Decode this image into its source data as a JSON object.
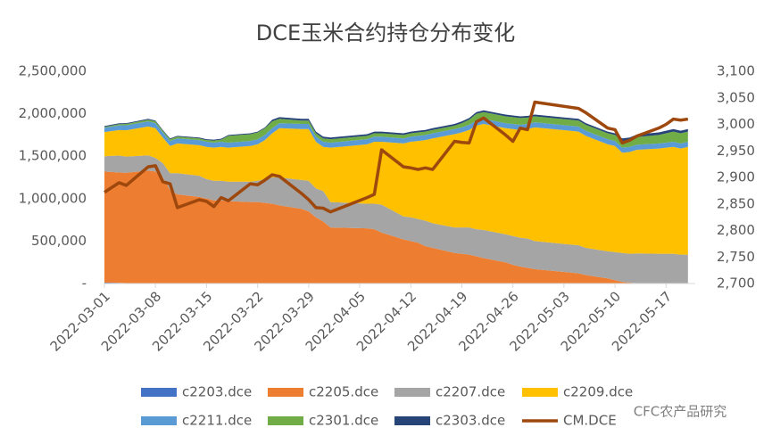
{
  "chart_data": {
    "type": "area",
    "title": "DCE玉米合约持仓分布变化",
    "watermark": "CFC农产品研究",
    "x": [
      "2022-03-01",
      "2022-03-03",
      "2022-03-04",
      "2022-03-07",
      "2022-03-08",
      "2022-03-09",
      "2022-03-10",
      "2022-03-11",
      "2022-03-14",
      "2022-03-15",
      "2022-03-16",
      "2022-03-17",
      "2022-03-18",
      "2022-03-21",
      "2022-03-22",
      "2022-03-23",
      "2022-03-24",
      "2022-03-25",
      "2022-03-28",
      "2022-03-29",
      "2022-03-30",
      "2022-03-31",
      "2022-04-01",
      "2022-04-06",
      "2022-04-07",
      "2022-04-08",
      "2022-04-11",
      "2022-04-12",
      "2022-04-13",
      "2022-04-14",
      "2022-04-15",
      "2022-04-18",
      "2022-04-19",
      "2022-04-20",
      "2022-04-21",
      "2022-04-22",
      "2022-04-25",
      "2022-04-26",
      "2022-04-27",
      "2022-04-28",
      "2022-04-29",
      "2022-05-05",
      "2022-05-06",
      "2022-05-09",
      "2022-05-10",
      "2022-05-11",
      "2022-05-12",
      "2022-05-13",
      "2022-05-16",
      "2022-05-17",
      "2022-05-18",
      "2022-05-19",
      "2022-05-20"
    ],
    "xlim": [
      "2022-03-01",
      "2022-05-21"
    ],
    "xticks": [
      "2022-03-01",
      "2022-03-08",
      "2022-03-15",
      "2022-03-22",
      "2022-03-29",
      "2022-04-05",
      "2022-04-12",
      "2022-04-19",
      "2022-04-26",
      "2022-05-03",
      "2022-05-10",
      "2022-05-17"
    ],
    "ylim": [
      0,
      2500000
    ],
    "yticks": [
      {
        "value": 0,
        "label": "-"
      },
      {
        "value": 500000,
        "label": "500,000"
      },
      {
        "value": 1000000,
        "label": "1,000,000"
      },
      {
        "value": 1500000,
        "label": "1,500,000"
      },
      {
        "value": 2000000,
        "label": "2,000,000"
      },
      {
        "value": 2500000,
        "label": "2,500,000"
      }
    ],
    "y2lim": [
      2700,
      3100
    ],
    "y2ticks": [
      {
        "value": 2700,
        "label": "2,700"
      },
      {
        "value": 2750,
        "label": "2,750"
      },
      {
        "value": 2800,
        "label": "2,800"
      },
      {
        "value": 2850,
        "label": "2,850"
      },
      {
        "value": 2900,
        "label": "2,900"
      },
      {
        "value": 2950,
        "label": "2,950"
      },
      {
        "value": 3000,
        "label": "3,000"
      },
      {
        "value": 3050,
        "label": "3,050"
      },
      {
        "value": 3100,
        "label": "3,100"
      }
    ],
    "stacked": true,
    "series": [
      {
        "name": "c2203.dce",
        "color": "#4472c4",
        "values": [
          10000,
          8000,
          5000,
          0,
          0,
          0,
          0,
          0,
          0,
          0,
          0,
          0,
          0,
          0,
          0,
          0,
          0,
          0,
          0,
          0,
          0,
          0,
          0,
          0,
          0,
          0,
          0,
          0,
          0,
          0,
          0,
          0,
          0,
          0,
          0,
          0,
          0,
          0,
          0,
          0,
          0,
          0,
          0,
          0,
          0,
          0,
          0,
          0,
          0,
          0,
          0,
          0,
          0
        ]
      },
      {
        "name": "c2205.dce",
        "color": "#ed7d31",
        "values": [
          1310000,
          1300000,
          1300000,
          1330000,
          1320000,
          1250000,
          1100000,
          1050000,
          1020000,
          1000000,
          980000,
          980000,
          970000,
          960000,
          960000,
          950000,
          940000,
          920000,
          880000,
          850000,
          780000,
          730000,
          660000,
          650000,
          640000,
          600000,
          520000,
          500000,
          480000,
          440000,
          420000,
          360000,
          350000,
          340000,
          320000,
          300000,
          250000,
          220000,
          200000,
          185000,
          170000,
          120000,
          100000,
          60000,
          40000,
          20000,
          10000,
          5000,
          0,
          0,
          0,
          0,
          0
        ]
      },
      {
        "name": "c2207.dce",
        "color": "#a5a5a5",
        "values": [
          180000,
          200000,
          190000,
          180000,
          160000,
          170000,
          200000,
          250000,
          250000,
          230000,
          230000,
          230000,
          230000,
          240000,
          250000,
          280000,
          310000,
          330000,
          340000,
          360000,
          340000,
          360000,
          300000,
          290000,
          300000,
          330000,
          270000,
          280000,
          280000,
          300000,
          290000,
          300000,
          310000,
          320000,
          320000,
          330000,
          330000,
          340000,
          340000,
          345000,
          330000,
          330000,
          320000,
          320000,
          330000,
          340000,
          340000,
          350000,
          350000,
          350000,
          350000,
          340000,
          340000
        ]
      },
      {
        "name": "c2209.dce",
        "color": "#ffc000",
        "values": [
          285000,
          300000,
          310000,
          340000,
          350000,
          300000,
          320000,
          350000,
          360000,
          380000,
          390000,
          400000,
          400000,
          420000,
          430000,
          460000,
          520000,
          580000,
          600000,
          610000,
          550000,
          520000,
          640000,
          700000,
          730000,
          740000,
          860000,
          890000,
          920000,
          950000,
          1000000,
          1100000,
          1120000,
          1150000,
          1220000,
          1250000,
          1250000,
          1260000,
          1270000,
          1290000,
          1340000,
          1340000,
          1320000,
          1260000,
          1250000,
          1180000,
          1200000,
          1220000,
          1240000,
          1250000,
          1260000,
          1250000,
          1270000
        ]
      },
      {
        "name": "c2211.dce",
        "color": "#5b9bd5",
        "values": [
          50000,
          55000,
          60000,
          60000,
          60000,
          60000,
          60000,
          60000,
          60000,
          60000,
          60000,
          60000,
          60000,
          60000,
          60000,
          60000,
          60000,
          60000,
          60000,
          60000,
          60000,
          60000,
          60000,
          60000,
          60000,
          60000,
          60000,
          60000,
          60000,
          60000,
          60000,
          60000,
          60000,
          60000,
          60000,
          60000,
          60000,
          60000,
          60000,
          60000,
          60000,
          60000,
          60000,
          60000,
          60000,
          60000,
          60000,
          60000,
          60000,
          60000,
          60000,
          60000,
          60000
        ]
      },
      {
        "name": "c2301.dce",
        "color": "#70ad47",
        "values": [
          10000,
          15000,
          15000,
          20000,
          20000,
          20000,
          20000,
          20000,
          20000,
          20000,
          25000,
          25000,
          80000,
          80000,
          80000,
          80000,
          80000,
          50000,
          40000,
          40000,
          40000,
          40000,
          40000,
          40000,
          40000,
          40000,
          40000,
          40000,
          40000,
          40000,
          40000,
          40000,
          50000,
          60000,
          80000,
          80000,
          80000,
          80000,
          80000,
          75000,
          70000,
          70000,
          70000,
          70000,
          70000,
          80000,
          80000,
          90000,
          100000,
          110000,
          120000,
          120000,
          120000
        ]
      },
      {
        "name": "c2303.dce",
        "color": "#264478",
        "values": [
          10000,
          10000,
          10000,
          10000,
          10000,
          10000,
          10000,
          10000,
          10000,
          10000,
          10000,
          10000,
          10000,
          10000,
          10000,
          10000,
          20000,
          20000,
          20000,
          20000,
          20000,
          20000,
          20000,
          20000,
          20000,
          20000,
          20000,
          20000,
          20000,
          20000,
          20000,
          20000,
          20000,
          20000,
          20000,
          20000,
          20000,
          20000,
          20000,
          20000,
          20000,
          20000,
          20000,
          20000,
          20000,
          30000,
          30000,
          30000,
          30000,
          30000,
          30000,
          30000,
          30000
        ]
      },
      {
        "name": "CM.DCE",
        "color": "#9e480e",
        "type": "line",
        "axis": "y2",
        "values": [
          2872,
          2890,
          2885,
          2920,
          2922,
          2892,
          2888,
          2843,
          2858,
          2855,
          2845,
          2862,
          2856,
          2888,
          2886,
          2895,
          2905,
          2902,
          2870,
          2858,
          2843,
          2842,
          2835,
          2862,
          2868,
          2952,
          2920,
          2918,
          2915,
          2918,
          2915,
          2968,
          2966,
          2965,
          3005,
          3012,
          2980,
          2968,
          2993,
          2990,
          3042,
          3030,
          3022,
          2993,
          2990,
          2965,
          2970,
          2978,
          2993,
          3000,
          3010,
          3008,
          3010
        ]
      }
    ]
  }
}
